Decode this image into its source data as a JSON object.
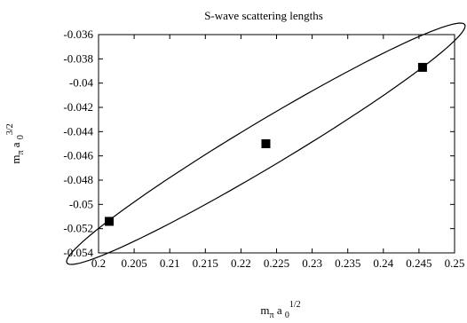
{
  "chart_data": {
    "type": "scatter",
    "title": "S-wave scattering lengths",
    "xlabel": {
      "main": "m",
      "sub1": "π",
      "mid": " a ",
      "sub2": "0",
      "sup": "1/2"
    },
    "ylabel": {
      "main": "m",
      "sub1": "π",
      "mid": " a ",
      "sub2": "0",
      "sup": "3/2"
    },
    "xlim": [
      0.2,
      0.25
    ],
    "ylim": [
      -0.054,
      -0.036
    ],
    "xticks": [
      0.2,
      0.205,
      0.21,
      0.215,
      0.22,
      0.225,
      0.23,
      0.235,
      0.24,
      0.245,
      0.25
    ],
    "xtick_labels": [
      "0.2",
      "0.205",
      "0.21",
      "0.215",
      "0.22",
      "0.225",
      "0.23",
      "0.235",
      "0.24",
      "0.245",
      "0.25"
    ],
    "yticks": [
      -0.036,
      -0.038,
      -0.04,
      -0.042,
      -0.044,
      -0.046,
      -0.048,
      -0.05,
      -0.052,
      -0.054
    ],
    "ytick_labels": [
      "-0.036",
      "-0.038",
      "-0.04",
      "-0.042",
      "-0.044",
      "-0.046",
      "-0.048",
      "-0.05",
      "-0.052",
      "-0.054"
    ],
    "grid": false,
    "points": [
      {
        "x": 0.2235,
        "y": -0.045
      },
      {
        "x": 0.2015,
        "y": -0.0514
      },
      {
        "x": 0.2455,
        "y": -0.0387
      }
    ],
    "ellipse": {
      "center": {
        "x": 0.2235,
        "y": -0.045
      },
      "vertex_a": {
        "x": 0.2455,
        "y": -0.0387
      },
      "vertex_b": {
        "x": 0.2062,
        "y": -0.0527
      }
    }
  }
}
